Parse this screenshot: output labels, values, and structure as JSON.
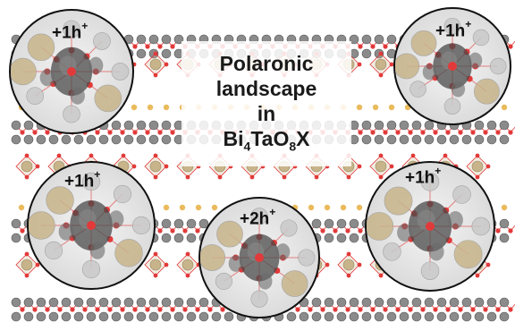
{
  "title": {
    "line1": "Polaronic",
    "line2": "landscape",
    "line3": "in",
    "formula_parts": [
      "Bi",
      "4",
      "TaO",
      "8",
      "X"
    ]
  },
  "bubbles": [
    {
      "charge": "+1h",
      "sup": "+"
    },
    {
      "charge": "+1h",
      "sup": "+"
    },
    {
      "charge": "+1h",
      "sup": "+"
    },
    {
      "charge": "+2h",
      "sup": "+"
    },
    {
      "charge": "+1h",
      "sup": "+"
    }
  ],
  "colors": {
    "oxygen": "#e23a3a",
    "bismuth": "#8b8b8b",
    "tantalum": "#c8b48a",
    "halide": "#e8b24a",
    "polaron": "#4a4a4a"
  }
}
